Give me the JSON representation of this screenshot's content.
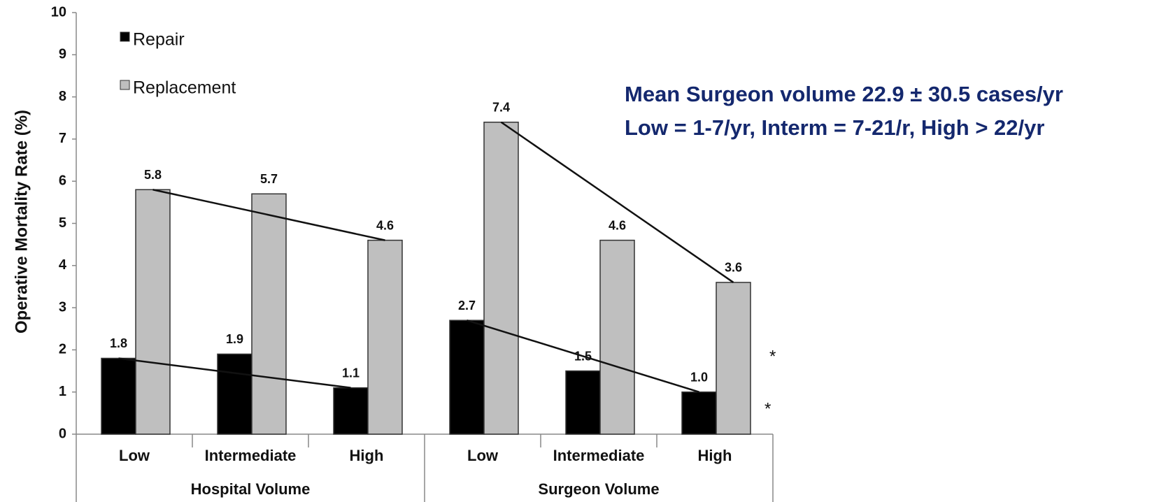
{
  "chart_data": {
    "type": "bar",
    "y_label": "Operative Mortality Rate (%)",
    "groups": [
      {
        "name": "Hospital Volume",
        "categories": [
          "Low",
          "Intermediate",
          "High"
        ]
      },
      {
        "name": "Surgeon Volume",
        "categories": [
          "Low",
          "Intermediate",
          "High"
        ]
      }
    ],
    "series": [
      {
        "name": "Repair",
        "color": "#000000",
        "values": [
          1.8,
          1.9,
          1.1,
          2.7,
          1.5,
          1.0
        ],
        "value_labels": [
          "1.8",
          "1.9",
          "1.1",
          "2.7",
          "1.5",
          "1.0"
        ]
      },
      {
        "name": "Replacement",
        "color": "#bfbfbf",
        "values": [
          5.8,
          5.7,
          4.6,
          7.4,
          4.6,
          3.6
        ],
        "value_labels": [
          "5.8",
          "5.7",
          "4.6",
          "7.4",
          "4.6",
          "3.6"
        ]
      }
    ],
    "ylim": [
      0,
      10
    ],
    "yticks": [
      0,
      1,
      2,
      3,
      4,
      5,
      6,
      7,
      8,
      9,
      10
    ],
    "annotations": [
      "Mean Surgeon volume 22.9 ± 30.5 cases/yr",
      "Low = 1-7/yr, Interm = 7-21/r, High > 22/yr",
      "*",
      "*"
    ]
  }
}
